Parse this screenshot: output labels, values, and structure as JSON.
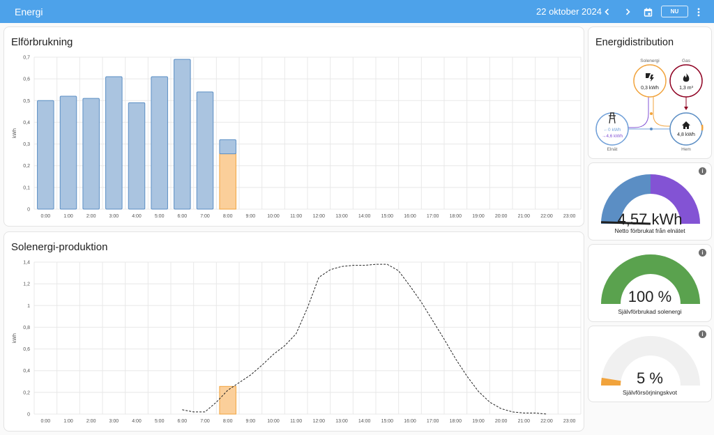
{
  "header": {
    "title": "Energi",
    "date": "22 oktober 2024",
    "now_label": "NU",
    "icons": [
      "chevron-left-icon",
      "chevron-right-icon",
      "calendar-icon",
      "more-vert-icon"
    ]
  },
  "consumption": {
    "title": "Elförbrukning",
    "chart_data": {
      "type": "bar",
      "ylabel": "kWh",
      "ylim": [
        0,
        0.7
      ],
      "yticks": [
        "0",
        "0,1",
        "0,2",
        "0,3",
        "0,4",
        "0,5",
        "0,6",
        "0,7"
      ],
      "categories": [
        "0:00",
        "1:00",
        "2:00",
        "3:00",
        "4:00",
        "5:00",
        "6:00",
        "7:00",
        "8:00",
        "9:00",
        "10:00",
        "11:00",
        "12:00",
        "13:00",
        "14:00",
        "15:00",
        "16:00",
        "17:00",
        "18:00",
        "19:00",
        "20:00",
        "21:00",
        "22:00",
        "23:00"
      ],
      "series": [
        {
          "key": "grid",
          "color": "#aac4e0",
          "stroke": "#5b8ec4",
          "values": [
            0.5,
            0.52,
            0.51,
            0.61,
            0.49,
            0.61,
            0.69,
            0.54,
            0.065,
            null,
            null,
            null,
            null,
            null,
            null,
            null,
            null,
            null,
            null,
            null,
            null,
            null,
            null,
            null
          ]
        },
        {
          "key": "solar",
          "color": "#fbcf9a",
          "stroke": "#f1a33c",
          "values": [
            null,
            null,
            null,
            null,
            null,
            null,
            null,
            null,
            0.255,
            null,
            null,
            null,
            null,
            null,
            null,
            null,
            null,
            null,
            null,
            null,
            null,
            null,
            null,
            null
          ]
        }
      ]
    }
  },
  "production": {
    "title": "Solenergi-produktion",
    "chart_data": {
      "type": "bar",
      "ylabel": "kWh",
      "ylim": [
        0,
        1.4
      ],
      "yticks": [
        "0",
        "0,2",
        "0,4",
        "0,6",
        "0,8",
        "1",
        "1,2",
        "1,4"
      ],
      "categories": [
        "0:00",
        "1:00",
        "2:00",
        "3:00",
        "4:00",
        "5:00",
        "6:00",
        "7:00",
        "8:00",
        "9:00",
        "10:00",
        "11:00",
        "12:00",
        "13:00",
        "14:00",
        "15:00",
        "16:00",
        "17:00",
        "18:00",
        "19:00",
        "20:00",
        "21:00",
        "22:00",
        "23:00"
      ],
      "bars": [
        {
          "x": 8,
          "value": 0.255,
          "color": "#fbcf9a",
          "stroke": "#f1a33c"
        }
      ],
      "forecast": {
        "style": "dashed",
        "x": [
          6,
          6.5,
          7,
          7.5,
          8,
          8.5,
          9,
          9.5,
          10,
          10.5,
          11,
          11.5,
          12,
          12.5,
          13,
          13.5,
          14,
          14.5,
          15,
          15.5,
          16,
          16.5,
          17,
          17.5,
          18,
          18.5,
          19,
          19.5,
          20,
          20.5,
          21,
          21.5,
          22
        ],
        "y": [
          0.04,
          0.02,
          0.02,
          0.11,
          0.22,
          0.29,
          0.36,
          0.45,
          0.55,
          0.63,
          0.74,
          0.98,
          1.26,
          1.33,
          1.36,
          1.37,
          1.37,
          1.38,
          1.38,
          1.32,
          1.18,
          1.03,
          0.86,
          0.69,
          0.51,
          0.35,
          0.21,
          0.11,
          0.05,
          0.02,
          0.01,
          0.01,
          0.0
        ]
      }
    }
  },
  "distribution": {
    "title": "Energidistribution",
    "solar": {
      "label": "Solenergi",
      "value": "0,3 kWh",
      "color": "#f1a33c"
    },
    "gas": {
      "label": "Gas",
      "value": "1,3 m³",
      "color": "#8e0021"
    },
    "grid": {
      "label": "Elnät",
      "value_in": "←0 kWh",
      "value_out": "→4,6 kWh",
      "color": "#6f9fd8",
      "out_color": "#8353d4"
    },
    "home": {
      "label": "Hem",
      "value": "4,8 kWh",
      "color": "#5b8ec4"
    }
  },
  "gauges": [
    {
      "value": "4,57 kWh",
      "label": "Netto förbrukat från elnätet",
      "colors": [
        "#5b8ec4",
        "#8353d4"
      ],
      "split": 0.5,
      "needle": 0.01
    },
    {
      "value": "100 %",
      "label": "Självförbrukad solenergi",
      "color": "#5aa24e",
      "fraction": 1.0
    },
    {
      "value": "5 %",
      "label": "Självförsörjningskvot",
      "color": "#f1a33c",
      "fraction": 0.05
    }
  ]
}
